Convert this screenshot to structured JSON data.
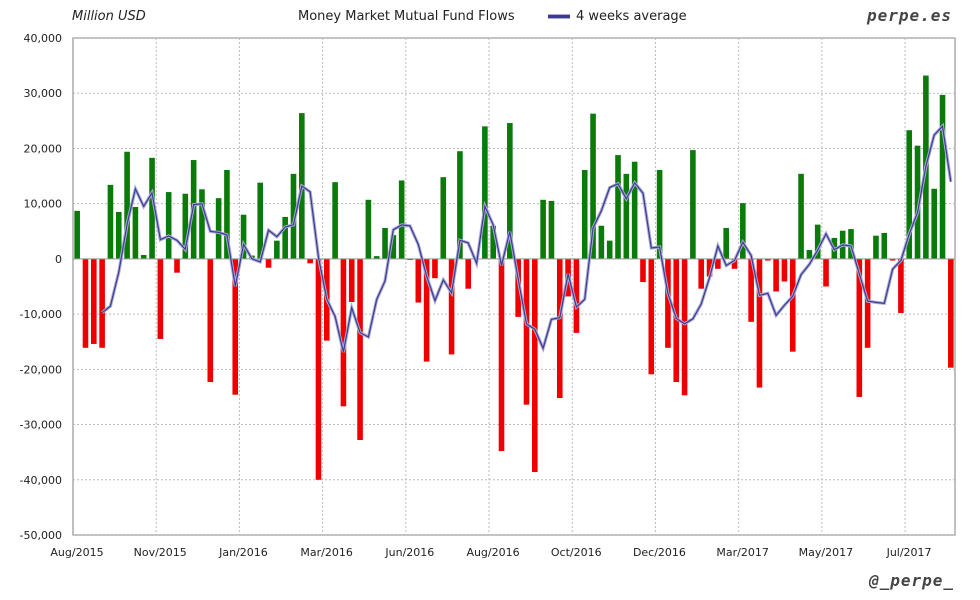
{
  "chart_data": {
    "type": "bar",
    "title": "Money Market Mutual Fund Flows",
    "ylabel": "Million USD",
    "xlabel": "",
    "ylim": [
      -50000,
      40000
    ],
    "yticks": [
      "40,000",
      "30,000",
      "20,000",
      "10,000",
      "0",
      "-10,000",
      "-20,000",
      "-30,000",
      "-40,000",
      "-50,000"
    ],
    "ytick_values": [
      40000,
      30000,
      20000,
      10000,
      0,
      -10000,
      -20000,
      -30000,
      -40000,
      -50000
    ],
    "xticks": [
      "Aug/2015",
      "Nov/2015",
      "Jan/2016",
      "Mar/2016",
      "Jun/2016",
      "Aug/2016",
      "Oct/2016",
      "Dec/2016",
      "Mar/2017",
      "May/2017",
      "Jul/2017"
    ],
    "xtick_every_n_weeks": 10,
    "grid": true,
    "legend": {
      "label": "4 weeks average",
      "placement": "top-center"
    },
    "colors": {
      "positive": "#0a7a0a",
      "negative": "#ee0000",
      "average": "#3c3c8e"
    },
    "series": [
      {
        "name": "Weekly flows",
        "values": [
          8700,
          -16100,
          -15400,
          -16100,
          13400,
          8500,
          19400,
          9400,
          700,
          18300,
          -14500,
          12100,
          -2500,
          11800,
          17900,
          12600,
          -22300,
          11000,
          16100,
          -24600,
          8000,
          600,
          13800,
          -1600,
          3300,
          7600,
          15400,
          26400,
          -800,
          -40000,
          -14800,
          13900,
          -26700,
          -7800,
          -32800,
          10700,
          500,
          5600,
          4300,
          14200,
          -200,
          -7900,
          -18600,
          -3500,
          14800,
          -17300,
          19500,
          -5400,
          0,
          24000,
          6000,
          -34800,
          24600,
          -10500,
          -26400,
          -38600,
          10700,
          10500,
          -25200,
          -6800,
          -13400,
          16100,
          26300,
          6000,
          3300,
          18800,
          15400,
          17600,
          -4200,
          -20900,
          16100,
          -16100,
          -22300,
          -24700,
          19700,
          -5400,
          -3200,
          -1800,
          5600,
          -1800,
          10100,
          -11400,
          -23300,
          -300,
          -5900,
          -4100,
          -16800,
          15400,
          1600,
          6200,
          -5000,
          3800,
          5100,
          5400,
          -25000,
          -16100,
          4200,
          4700,
          -300,
          -9800,
          23300,
          20500,
          33200,
          12700,
          29700,
          -19700
        ]
      },
      {
        "name": "4 weeks average",
        "window": 4
      }
    ]
  },
  "header": {
    "unit": "Million USD",
    "title": "Money Market Mutual Fund Flows",
    "legend": "4 weeks average",
    "brand": "perpe.es"
  },
  "footer": {
    "handle": "@_perpe_"
  }
}
